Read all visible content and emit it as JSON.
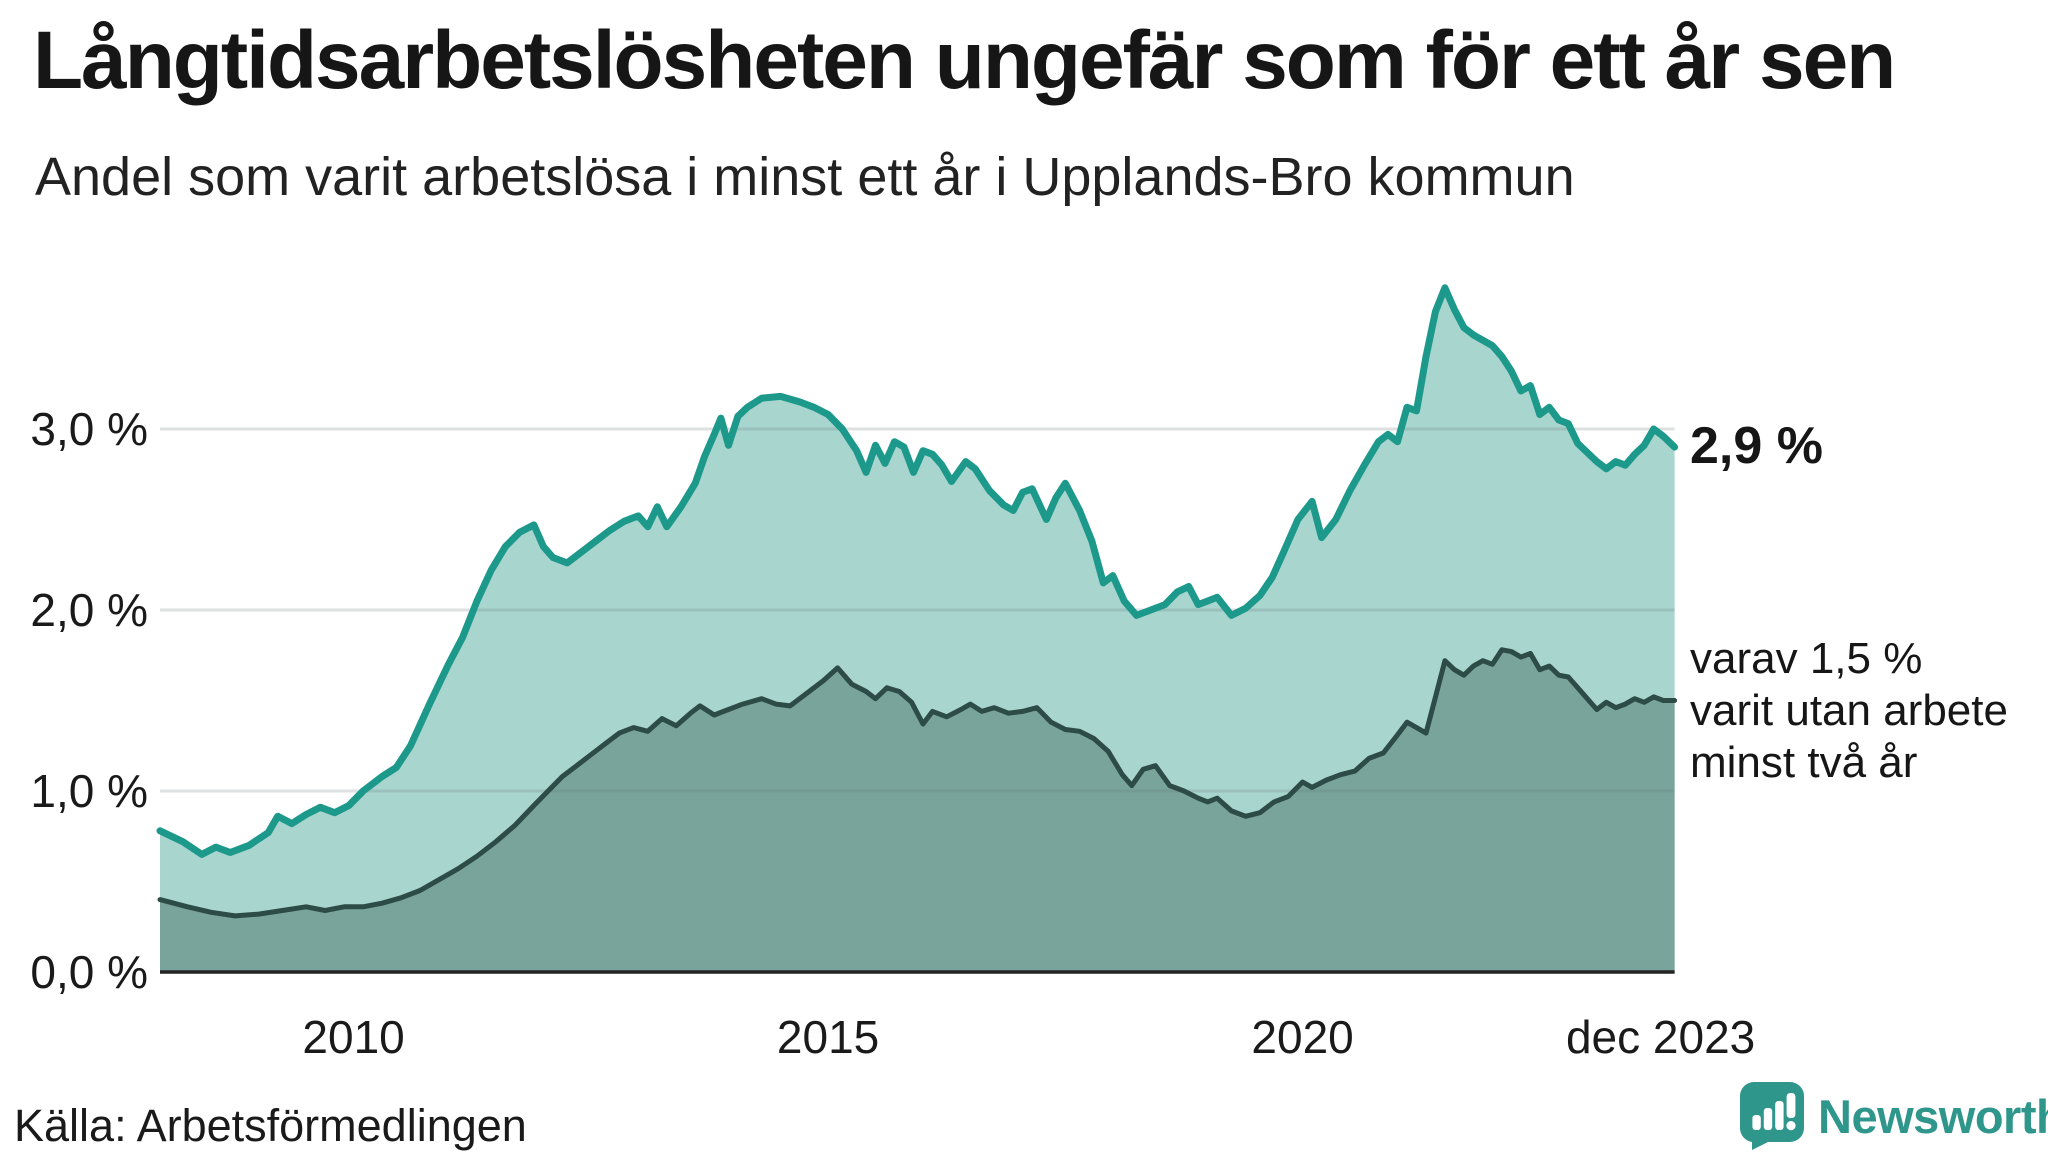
{
  "header": {
    "title": "Långtidsarbetslösheten ungefär som för ett år sen",
    "subtitle": "Andel som varit arbetslösa i minst ett år i Upplands-Bro kommun"
  },
  "annotations": {
    "end_label": "2,9 %",
    "secondary": [
      "varav 1,5 %",
      "varit utan arbete",
      "minst två år"
    ]
  },
  "footer": {
    "source": "Källa: Arbetsförmedlingen"
  },
  "brand": {
    "name": "Newsworthy",
    "color": "#2f968c"
  },
  "colors": {
    "series1_line": "#1d998b",
    "series1_fill": "#a8d5ce",
    "series2_line": "#2d4b47",
    "series2_fill": "#78a49c",
    "gridline": "rgba(105,120,122,0.22)",
    "axis": "#242424",
    "text": "#161616"
  },
  "chart_data": {
    "type": "area",
    "title": "Långtidsarbetslösheten ungefär som för ett år sen",
    "subtitle": "Andel som varit arbetslösa i minst ett år i Upplands-Bro kommun",
    "xlabel": "",
    "ylabel": "",
    "xlim": [
      2007.96,
      2023.92
    ],
    "ylim": [
      0,
      4.15
    ],
    "grid": true,
    "legend": "none",
    "x_ticks": [
      {
        "label": "2010",
        "year": 2010
      },
      {
        "label": "2015",
        "year": 2015
      },
      {
        "label": "2020",
        "year": 2020
      },
      {
        "label": "dec 2023",
        "year": 2023.9
      }
    ],
    "y_ticks": [
      {
        "label": "0,0 %",
        "value": 0
      },
      {
        "label": "1,0 %",
        "value": 1
      },
      {
        "label": "2,0 %",
        "value": 2
      },
      {
        "label": "3,0 %",
        "value": 3
      }
    ],
    "series": [
      {
        "name": "minst ett år",
        "end_value": "2,9 %",
        "line_color": "#1d998b",
        "fill_color": "#a8d5ce",
        "line_width": 7,
        "points": [
          [
            2007.96,
            0.78
          ],
          [
            2008.2,
            0.72
          ],
          [
            2008.4,
            0.65
          ],
          [
            2008.55,
            0.69
          ],
          [
            2008.7,
            0.66
          ],
          [
            2008.9,
            0.7
          ],
          [
            2009.1,
            0.77
          ],
          [
            2009.2,
            0.86
          ],
          [
            2009.35,
            0.82
          ],
          [
            2009.5,
            0.87
          ],
          [
            2009.65,
            0.91
          ],
          [
            2009.8,
            0.88
          ],
          [
            2009.95,
            0.92
          ],
          [
            2010.1,
            1.0
          ],
          [
            2010.3,
            1.08
          ],
          [
            2010.45,
            1.13
          ],
          [
            2010.6,
            1.25
          ],
          [
            2010.8,
            1.48
          ],
          [
            2011.0,
            1.7
          ],
          [
            2011.15,
            1.85
          ],
          [
            2011.3,
            2.05
          ],
          [
            2011.45,
            2.22
          ],
          [
            2011.6,
            2.35
          ],
          [
            2011.75,
            2.43
          ],
          [
            2011.9,
            2.47
          ],
          [
            2012.0,
            2.35
          ],
          [
            2012.1,
            2.29
          ],
          [
            2012.25,
            2.26
          ],
          [
            2012.4,
            2.32
          ],
          [
            2012.55,
            2.38
          ],
          [
            2012.7,
            2.44
          ],
          [
            2012.85,
            2.49
          ],
          [
            2013.0,
            2.52
          ],
          [
            2013.1,
            2.46
          ],
          [
            2013.2,
            2.57
          ],
          [
            2013.3,
            2.46
          ],
          [
            2013.45,
            2.57
          ],
          [
            2013.6,
            2.7
          ],
          [
            2013.7,
            2.85
          ],
          [
            2013.8,
            2.97
          ],
          [
            2013.87,
            3.06
          ],
          [
            2013.95,
            2.91
          ],
          [
            2014.05,
            3.07
          ],
          [
            2014.15,
            3.12
          ],
          [
            2014.3,
            3.17
          ],
          [
            2014.5,
            3.18
          ],
          [
            2014.7,
            3.15
          ],
          [
            2014.85,
            3.12
          ],
          [
            2015.0,
            3.08
          ],
          [
            2015.15,
            3.0
          ],
          [
            2015.3,
            2.88
          ],
          [
            2015.4,
            2.76
          ],
          [
            2015.5,
            2.91
          ],
          [
            2015.6,
            2.81
          ],
          [
            2015.7,
            2.93
          ],
          [
            2015.8,
            2.9
          ],
          [
            2015.9,
            2.76
          ],
          [
            2016.0,
            2.88
          ],
          [
            2016.1,
            2.86
          ],
          [
            2016.2,
            2.8
          ],
          [
            2016.3,
            2.71
          ],
          [
            2016.45,
            2.82
          ],
          [
            2016.55,
            2.78
          ],
          [
            2016.7,
            2.66
          ],
          [
            2016.85,
            2.58
          ],
          [
            2016.95,
            2.55
          ],
          [
            2017.05,
            2.65
          ],
          [
            2017.15,
            2.67
          ],
          [
            2017.3,
            2.5
          ],
          [
            2017.4,
            2.62
          ],
          [
            2017.5,
            2.7
          ],
          [
            2017.65,
            2.55
          ],
          [
            2017.78,
            2.38
          ],
          [
            2017.9,
            2.15
          ],
          [
            2018.0,
            2.19
          ],
          [
            2018.12,
            2.05
          ],
          [
            2018.25,
            1.97
          ],
          [
            2018.4,
            2.0
          ],
          [
            2018.55,
            2.03
          ],
          [
            2018.68,
            2.1
          ],
          [
            2018.8,
            2.13
          ],
          [
            2018.9,
            2.03
          ],
          [
            2019.0,
            2.05
          ],
          [
            2019.1,
            2.07
          ],
          [
            2019.25,
            1.97
          ],
          [
            2019.4,
            2.01
          ],
          [
            2019.55,
            2.08
          ],
          [
            2019.68,
            2.18
          ],
          [
            2019.8,
            2.32
          ],
          [
            2019.95,
            2.5
          ],
          [
            2020.1,
            2.6
          ],
          [
            2020.2,
            2.4
          ],
          [
            2020.35,
            2.5
          ],
          [
            2020.5,
            2.66
          ],
          [
            2020.65,
            2.8
          ],
          [
            2020.8,
            2.93
          ],
          [
            2020.9,
            2.97
          ],
          [
            2021.0,
            2.93
          ],
          [
            2021.1,
            3.12
          ],
          [
            2021.2,
            3.1
          ],
          [
            2021.3,
            3.4
          ],
          [
            2021.4,
            3.65
          ],
          [
            2021.5,
            3.78
          ],
          [
            2021.6,
            3.66
          ],
          [
            2021.7,
            3.56
          ],
          [
            2021.8,
            3.52
          ],
          [
            2021.9,
            3.49
          ],
          [
            2022.0,
            3.46
          ],
          [
            2022.1,
            3.4
          ],
          [
            2022.2,
            3.32
          ],
          [
            2022.3,
            3.21
          ],
          [
            2022.4,
            3.24
          ],
          [
            2022.5,
            3.08
          ],
          [
            2022.6,
            3.12
          ],
          [
            2022.7,
            3.05
          ],
          [
            2022.8,
            3.03
          ],
          [
            2022.9,
            2.92
          ],
          [
            2023.0,
            2.87
          ],
          [
            2023.1,
            2.82
          ],
          [
            2023.2,
            2.78
          ],
          [
            2023.3,
            2.82
          ],
          [
            2023.4,
            2.8
          ],
          [
            2023.5,
            2.86
          ],
          [
            2023.6,
            2.91
          ],
          [
            2023.7,
            3.0
          ],
          [
            2023.8,
            2.96
          ],
          [
            2023.92,
            2.9
          ]
        ]
      },
      {
        "name": "minst två år",
        "end_value": "1,5 %",
        "line_color": "#2d4b47",
        "fill_color": "#78a49c",
        "line_width": 5,
        "points": [
          [
            2007.96,
            0.4
          ],
          [
            2008.25,
            0.36
          ],
          [
            2008.5,
            0.33
          ],
          [
            2008.75,
            0.31
          ],
          [
            2009.0,
            0.32
          ],
          [
            2009.25,
            0.34
          ],
          [
            2009.5,
            0.36
          ],
          [
            2009.7,
            0.34
          ],
          [
            2009.9,
            0.36
          ],
          [
            2010.1,
            0.36
          ],
          [
            2010.3,
            0.38
          ],
          [
            2010.5,
            0.41
          ],
          [
            2010.7,
            0.45
          ],
          [
            2010.9,
            0.51
          ],
          [
            2011.1,
            0.57
          ],
          [
            2011.3,
            0.64
          ],
          [
            2011.5,
            0.72
          ],
          [
            2011.7,
            0.81
          ],
          [
            2011.9,
            0.92
          ],
          [
            2012.05,
            1.0
          ],
          [
            2012.2,
            1.08
          ],
          [
            2012.35,
            1.14
          ],
          [
            2012.5,
            1.2
          ],
          [
            2012.65,
            1.26
          ],
          [
            2012.8,
            1.32
          ],
          [
            2012.95,
            1.35
          ],
          [
            2013.1,
            1.33
          ],
          [
            2013.25,
            1.4
          ],
          [
            2013.4,
            1.36
          ],
          [
            2013.55,
            1.43
          ],
          [
            2013.65,
            1.47
          ],
          [
            2013.8,
            1.42
          ],
          [
            2013.95,
            1.45
          ],
          [
            2014.1,
            1.48
          ],
          [
            2014.3,
            1.51
          ],
          [
            2014.45,
            1.48
          ],
          [
            2014.6,
            1.47
          ],
          [
            2014.8,
            1.55
          ],
          [
            2014.95,
            1.61
          ],
          [
            2015.1,
            1.68
          ],
          [
            2015.25,
            1.59
          ],
          [
            2015.4,
            1.55
          ],
          [
            2015.5,
            1.51
          ],
          [
            2015.62,
            1.57
          ],
          [
            2015.75,
            1.55
          ],
          [
            2015.88,
            1.49
          ],
          [
            2016.0,
            1.37
          ],
          [
            2016.1,
            1.44
          ],
          [
            2016.25,
            1.41
          ],
          [
            2016.4,
            1.45
          ],
          [
            2016.5,
            1.48
          ],
          [
            2016.62,
            1.44
          ],
          [
            2016.75,
            1.46
          ],
          [
            2016.9,
            1.43
          ],
          [
            2017.05,
            1.44
          ],
          [
            2017.2,
            1.46
          ],
          [
            2017.35,
            1.38
          ],
          [
            2017.5,
            1.34
          ],
          [
            2017.65,
            1.33
          ],
          [
            2017.8,
            1.29
          ],
          [
            2017.95,
            1.22
          ],
          [
            2018.1,
            1.09
          ],
          [
            2018.2,
            1.03
          ],
          [
            2018.32,
            1.12
          ],
          [
            2018.45,
            1.14
          ],
          [
            2018.6,
            1.03
          ],
          [
            2018.75,
            1.0
          ],
          [
            2018.9,
            0.96
          ],
          [
            2019.0,
            0.94
          ],
          [
            2019.1,
            0.96
          ],
          [
            2019.25,
            0.89
          ],
          [
            2019.4,
            0.86
          ],
          [
            2019.55,
            0.88
          ],
          [
            2019.7,
            0.94
          ],
          [
            2019.85,
            0.97
          ],
          [
            2020.0,
            1.05
          ],
          [
            2020.1,
            1.02
          ],
          [
            2020.25,
            1.06
          ],
          [
            2020.4,
            1.09
          ],
          [
            2020.55,
            1.11
          ],
          [
            2020.7,
            1.18
          ],
          [
            2020.85,
            1.21
          ],
          [
            2021.0,
            1.31
          ],
          [
            2021.1,
            1.38
          ],
          [
            2021.2,
            1.35
          ],
          [
            2021.3,
            1.32
          ],
          [
            2021.4,
            1.52
          ],
          [
            2021.5,
            1.72
          ],
          [
            2021.6,
            1.67
          ],
          [
            2021.7,
            1.64
          ],
          [
            2021.8,
            1.69
          ],
          [
            2021.9,
            1.72
          ],
          [
            2022.0,
            1.7
          ],
          [
            2022.1,
            1.78
          ],
          [
            2022.2,
            1.77
          ],
          [
            2022.3,
            1.74
          ],
          [
            2022.4,
            1.76
          ],
          [
            2022.5,
            1.67
          ],
          [
            2022.6,
            1.69
          ],
          [
            2022.7,
            1.64
          ],
          [
            2022.8,
            1.63
          ],
          [
            2022.9,
            1.57
          ],
          [
            2023.0,
            1.51
          ],
          [
            2023.1,
            1.45
          ],
          [
            2023.2,
            1.49
          ],
          [
            2023.3,
            1.46
          ],
          [
            2023.4,
            1.48
          ],
          [
            2023.5,
            1.51
          ],
          [
            2023.6,
            1.49
          ],
          [
            2023.7,
            1.52
          ],
          [
            2023.8,
            1.5
          ],
          [
            2023.92,
            1.5
          ]
        ]
      }
    ]
  }
}
